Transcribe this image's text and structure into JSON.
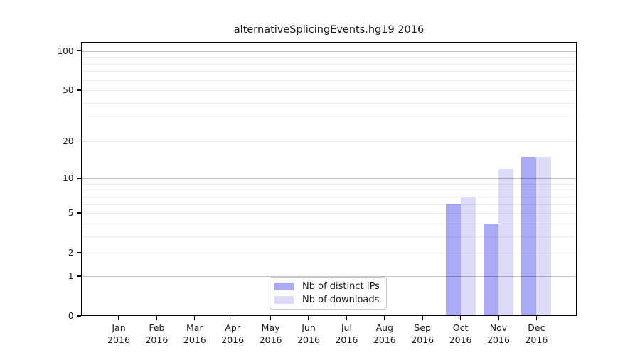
{
  "title": "alternativeSplicingEvents.hg19 2016",
  "chart_data": {
    "type": "bar",
    "title": "alternativeSplicingEvents.hg19 2016",
    "categories": [
      "Jan 2016",
      "Feb 2016",
      "Mar 2016",
      "Apr 2016",
      "May 2016",
      "Jun 2016",
      "Jul 2016",
      "Aug 2016",
      "Sep 2016",
      "Oct 2016",
      "Nov 2016",
      "Dec 2016"
    ],
    "series": [
      {
        "name": "Nb of distinct IPs",
        "color": "#aaaaf5",
        "values": [
          0,
          0,
          0,
          0,
          0,
          0,
          0,
          0,
          0,
          6,
          4,
          15
        ]
      },
      {
        "name": "Nb of downloads",
        "color": "#dcdcf8",
        "values": [
          0,
          0,
          0,
          0,
          0,
          0,
          0,
          0,
          0,
          7,
          12,
          15
        ]
      }
    ],
    "xlabel": "",
    "ylabel": "",
    "y_scale": "log10(value+1)",
    "y_ticks": [
      0,
      1,
      2,
      5,
      10,
      20,
      50,
      100
    ],
    "y_major_gridlines": [
      1,
      10,
      100
    ],
    "y_minor_gridlines": [
      2,
      3,
      4,
      5,
      6,
      7,
      8,
      9,
      20,
      30,
      40,
      50,
      60,
      70,
      80,
      90
    ],
    "ylim": [
      0,
      118
    ],
    "grid": true,
    "legend_position": "bottom-center"
  },
  "legend": {
    "items": [
      {
        "label": "Nb of distinct IPs",
        "color": "#aaaaf5"
      },
      {
        "label": "Nb of downloads",
        "color": "#dcdcf8"
      }
    ]
  },
  "colors": {
    "spine": "#000000",
    "legend_border": "#c9c9c9"
  }
}
